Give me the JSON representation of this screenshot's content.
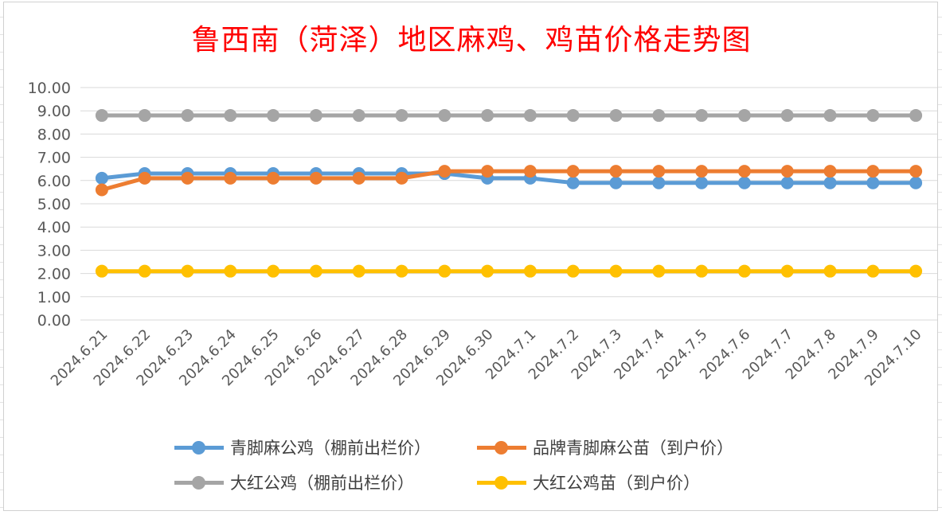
{
  "chart_data": {
    "type": "line",
    "title": "鲁西南（菏泽）地区麻鸡、鸡苗价格走势图",
    "categories": [
      "2024.6.21",
      "2024.6.22",
      "2024.6.23",
      "2024.6.24",
      "2024.6.25",
      "2024.6.26",
      "2024.6.27",
      "2024.6.28",
      "2024.6.29",
      "2024.6.30",
      "2024.7.1",
      "2024.7.2",
      "2024.7.3",
      "2024.7.4",
      "2024.7.5",
      "2024.7.6",
      "2024.7.7",
      "2024.7.8",
      "2024.7.9",
      "2024.7.10"
    ],
    "ylim": [
      0,
      10
    ],
    "yticks": [
      "0.00",
      "1.00",
      "2.00",
      "3.00",
      "4.00",
      "5.00",
      "6.00",
      "7.00",
      "8.00",
      "9.00",
      "10.00"
    ],
    "grid": true,
    "legend_position": "bottom",
    "series": [
      {
        "name": "青脚麻公鸡（棚前出栏价）",
        "color": "#5b9bd5",
        "values": [
          6.1,
          6.3,
          6.3,
          6.3,
          6.3,
          6.3,
          6.3,
          6.3,
          6.3,
          6.1,
          6.1,
          5.9,
          5.9,
          5.9,
          5.9,
          5.9,
          5.9,
          5.9,
          5.9,
          5.9
        ]
      },
      {
        "name": "品牌青脚麻公苗（到户价）",
        "color": "#ed7d31",
        "values": [
          5.6,
          6.1,
          6.1,
          6.1,
          6.1,
          6.1,
          6.1,
          6.1,
          6.4,
          6.4,
          6.4,
          6.4,
          6.4,
          6.4,
          6.4,
          6.4,
          6.4,
          6.4,
          6.4,
          6.4
        ]
      },
      {
        "name": "大红公鸡（棚前出栏价）",
        "color": "#a5a5a5",
        "values": [
          8.8,
          8.8,
          8.8,
          8.8,
          8.8,
          8.8,
          8.8,
          8.8,
          8.8,
          8.8,
          8.8,
          8.8,
          8.8,
          8.8,
          8.8,
          8.8,
          8.8,
          8.8,
          8.8,
          8.8
        ]
      },
      {
        "name": "大红公鸡苗（到户价）",
        "color": "#ffc000",
        "values": [
          2.1,
          2.1,
          2.1,
          2.1,
          2.1,
          2.1,
          2.1,
          2.1,
          2.1,
          2.1,
          2.1,
          2.1,
          2.1,
          2.1,
          2.1,
          2.1,
          2.1,
          2.1,
          2.1,
          2.1
        ]
      }
    ]
  }
}
